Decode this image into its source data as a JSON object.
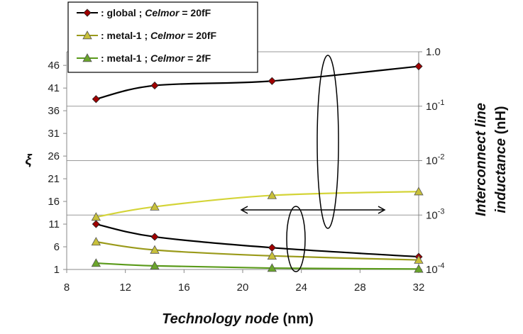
{
  "chart_data": {
    "type": "line",
    "xlabel": {
      "italic": "Technology node",
      "plain": " (nm)"
    },
    "ylabel_left": "ξ",
    "ylabel_right": {
      "line1": "Interconnect line",
      "line2_italic": "inductance",
      "line2_plain": " (nH)"
    },
    "x_ticks": [
      8,
      12,
      16,
      20,
      24,
      28,
      32
    ],
    "xlim": [
      8,
      32
    ],
    "y_left_ticks": [
      1,
      6,
      11,
      16,
      21,
      26,
      31,
      36,
      41,
      46
    ],
    "y_left_lim": [
      1,
      49
    ],
    "y_right_ticks": [
      {
        "base": "10",
        "exp": "-4",
        "value": 0.0001
      },
      {
        "base": "10",
        "exp": "-3",
        "value": 0.001
      },
      {
        "base": "10",
        "exp": "-2",
        "value": 0.01
      },
      {
        "base": "10",
        "exp": "-1",
        "value": 0.1
      },
      {
        "base": "1.0",
        "exp": "",
        "value": 1.0
      }
    ],
    "y_right_scale": "log",
    "y_right_lim": [
      0.0001,
      1.0
    ],
    "grid": "horizontal at right-axis decades",
    "legend_position": "top-left",
    "legend": [
      {
        "prefix": ": global ; ",
        "italic": "Celmor",
        "suffix": " = 20fF",
        "color": "#000000",
        "marker": "diamond",
        "marker_fill": "#a00000"
      },
      {
        "prefix": ": metal-1 ; ",
        "italic": "Celmor",
        "suffix": "  = 20fF",
        "color": "#9a9a1a",
        "marker": "triangle",
        "marker_fill": "#c8c03a"
      },
      {
        "prefix": ": metal-1 ; ",
        "italic": "Celmor",
        "suffix": " = 2fF",
        "color": "#5a9a1a",
        "marker": "triangle",
        "marker_fill": "#6aa52a"
      }
    ],
    "series": [
      {
        "axis": "right",
        "color": "#000000",
        "marker": "diamond",
        "marker_fill": "#a00000",
        "x": [
          10,
          14,
          22,
          32
        ],
        "y": [
          0.135,
          0.24,
          0.29,
          0.54
        ]
      },
      {
        "axis": "right",
        "color": "#d4d438",
        "marker": "triangle",
        "marker_fill": "#c8c03a",
        "x": [
          10,
          14,
          22,
          32
        ],
        "y": [
          0.00092,
          0.00142,
          0.0023,
          0.0027
        ]
      },
      {
        "axis": "left",
        "color": "#000000",
        "marker": "diamond",
        "marker_fill": "#a00000",
        "x": [
          10,
          14,
          22,
          32
        ],
        "y": [
          11,
          8.2,
          5.8,
          3.8
        ]
      },
      {
        "axis": "left",
        "color": "#9a9a1a",
        "marker": "triangle",
        "marker_fill": "#c8c03a",
        "x": [
          10,
          14,
          22,
          32
        ],
        "y": [
          7.1,
          5.3,
          4.0,
          3.1
        ]
      },
      {
        "axis": "left",
        "color": "#5a9a1a",
        "marker": "triangle",
        "marker_fill": "#6aa52a",
        "x": [
          10,
          14,
          22,
          32
        ],
        "y": [
          2.4,
          1.8,
          1.3,
          1.1
        ]
      }
    ]
  }
}
